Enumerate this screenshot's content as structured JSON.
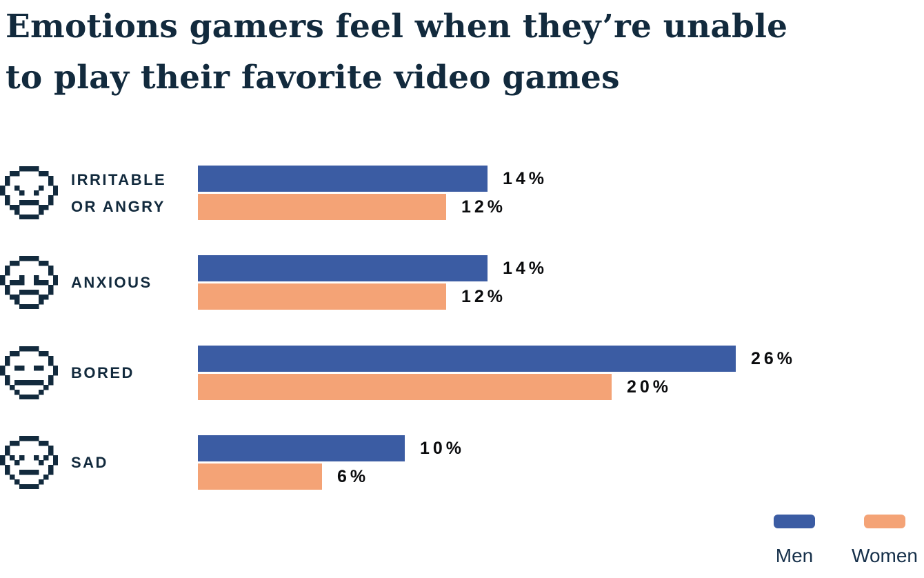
{
  "title": {
    "line1": "Emotions gamers feel when they’re unable",
    "line2": "to play their favorite video games",
    "full": "Emotions gamers feel when they’re unable to play their favorite video games"
  },
  "colors": {
    "men_bar": "#3b5ca3",
    "women_bar": "#f4a376",
    "heading_text": "#122a3d",
    "value_text": "#0b0c0e"
  },
  "rows": [
    {
      "icon": "angry",
      "icon_name": "angry-face-pixel-icon",
      "label_line1": "IRRITABLE",
      "label_line2": "OR ANGRY",
      "men_display": "14%",
      "women_display": "12%"
    },
    {
      "icon": "anxious",
      "icon_name": "anxious-face-pixel-icon",
      "label_line1": "ANXIOUS",
      "label_line2": "",
      "men_display": "14%",
      "women_display": "12%"
    },
    {
      "icon": "bored",
      "icon_name": "bored-face-pixel-icon",
      "label_line1": "BORED",
      "label_line2": "",
      "men_display": "26%",
      "women_display": "20%"
    },
    {
      "icon": "sad",
      "icon_name": "sad-face-pixel-icon",
      "label_line1": "SAD",
      "label_line2": "",
      "men_display": "10%",
      "women_display": "6%"
    }
  ],
  "legend": {
    "men": "Men",
    "women": "Women"
  },
  "chart_data": {
    "type": "bar",
    "orientation": "horizontal",
    "title": "Emotions gamers feel when they’re unable to play their favorite video games",
    "categories": [
      "Irritable or angry",
      "Anxious",
      "Bored",
      "Sad"
    ],
    "series": [
      {
        "name": "Men",
        "color": "#3b5ca3",
        "values": [
          14,
          14,
          26,
          10
        ]
      },
      {
        "name": "Women",
        "color": "#f4a376",
        "values": [
          12,
          12,
          20,
          6
        ]
      }
    ],
    "unit": "%",
    "value_labels": true,
    "xlim": [
      0,
      30
    ],
    "grid": false,
    "legend_position": "bottom-right"
  }
}
